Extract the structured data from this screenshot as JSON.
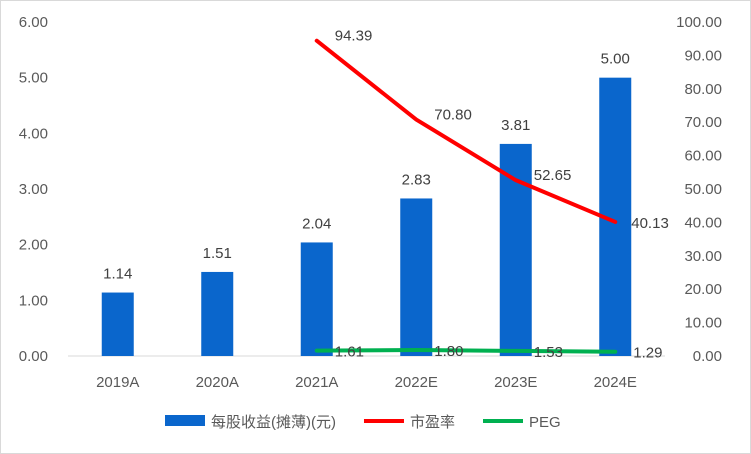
{
  "chart_data": {
    "type": "bar",
    "categories": [
      "2019A",
      "2020A",
      "2021A",
      "2022E",
      "2023E",
      "2024E"
    ],
    "series": [
      {
        "name": "每股收益(摊薄)(元)",
        "type": "bar",
        "axis": "left",
        "color": "#0a66cc",
        "values": [
          1.14,
          1.51,
          2.04,
          2.83,
          3.81,
          5.0
        ],
        "labels": [
          "1.14",
          "1.51",
          "2.04",
          "2.83",
          "3.81",
          "5.00"
        ]
      },
      {
        "name": "市盈率",
        "type": "line",
        "axis": "right",
        "color": "#ff0000",
        "values": [
          null,
          null,
          94.39,
          70.8,
          52.65,
          40.13
        ],
        "labels": [
          "",
          "",
          "94.39",
          "70.80",
          "52.65",
          "40.13"
        ]
      },
      {
        "name": "PEG",
        "type": "line",
        "axis": "right",
        "color": "#00b050",
        "values": [
          null,
          null,
          1.61,
          1.8,
          1.53,
          1.29
        ],
        "labels": [
          "",
          "",
          "1.61",
          "1.80",
          "1.53",
          "1.29"
        ]
      }
    ],
    "y_left": {
      "min": 0,
      "max": 6,
      "step": 1,
      "tick_labels": [
        "0.00",
        "1.00",
        "2.00",
        "3.00",
        "4.00",
        "5.00",
        "6.00"
      ]
    },
    "y_right": {
      "min": 0,
      "max": 100,
      "step": 10,
      "tick_labels": [
        "0.00",
        "10.00",
        "20.00",
        "30.00",
        "40.00",
        "50.00",
        "60.00",
        "70.00",
        "80.00",
        "90.00",
        "100.00"
      ]
    },
    "grid": false,
    "legend_position": "bottom"
  }
}
